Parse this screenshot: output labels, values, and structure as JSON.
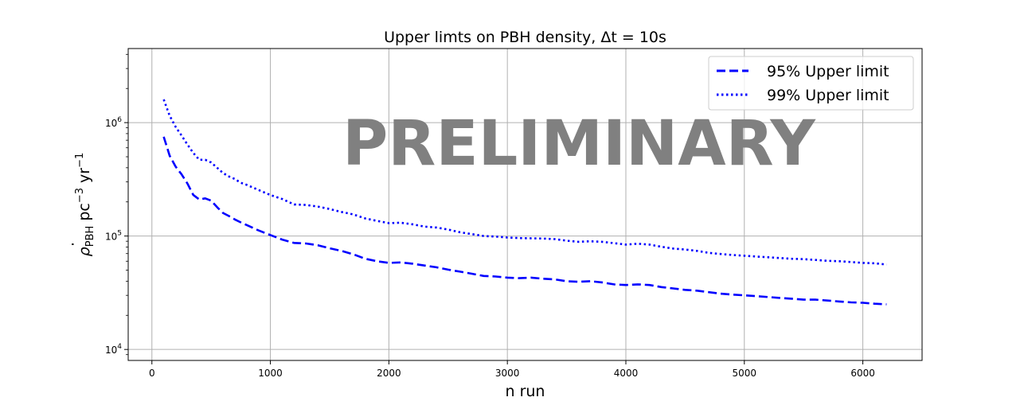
{
  "chart_data": {
    "type": "line",
    "title_prefix": "Upper limts on PBH density, ",
    "title_math": "Δt = 10s",
    "xlabel": "n run",
    "ylabel": {
      "base": "ρ",
      "sub": "PBH",
      "unit1": " pc",
      "exp1": "−3",
      "unit2": " yr",
      "exp2": "−1"
    },
    "xlim": [
      -200,
      6500
    ],
    "ylim": [
      8000,
      4500000
    ],
    "yscale": "log",
    "grid": true,
    "legend_position": "top-right",
    "watermark": "PRELIMINARY",
    "x_ticks": [
      0,
      1000,
      2000,
      3000,
      4000,
      5000,
      6000
    ],
    "x_tick_labels": [
      "0",
      "1000",
      "2000",
      "3000",
      "4000",
      "5000",
      "6000"
    ],
    "y_ticks": [
      10000,
      100000,
      1000000
    ],
    "y_tick_labels": [
      {
        "base": "10",
        "exp": "4"
      },
      {
        "base": "10",
        "exp": "5"
      },
      {
        "base": "10",
        "exp": "6"
      }
    ],
    "x": [
      100,
      150,
      200,
      250,
      300,
      350,
      400,
      450,
      500,
      550,
      600,
      650,
      700,
      750,
      800,
      900,
      1000,
      1100,
      1200,
      1300,
      1400,
      1500,
      1600,
      1700,
      1800,
      1900,
      2000,
      2100,
      2200,
      2300,
      2400,
      2500,
      2600,
      2700,
      2800,
      2900,
      3000,
      3100,
      3200,
      3300,
      3400,
      3500,
      3600,
      3700,
      3800,
      3900,
      4000,
      4100,
      4200,
      4300,
      4400,
      4500,
      4600,
      4700,
      4800,
      4900,
      5000,
      5100,
      5200,
      5300,
      5400,
      5500,
      5600,
      5700,
      5800,
      5900,
      6000,
      6100,
      6200
    ],
    "series": [
      {
        "name": "95% Upper limit",
        "color": "#0000ff",
        "linestyle": "dashed",
        "values": [
          750000,
          510000,
          410000,
          350000,
          290000,
          230000,
          210000,
          215000,
          205000,
          180000,
          160000,
          150000,
          140000,
          132000,
          125000,
          112000,
          102000,
          93000,
          87000,
          86000,
          83000,
          78000,
          74000,
          69000,
          63000,
          60000,
          58000,
          58500,
          57000,
          55000,
          53000,
          50500,
          48500,
          46500,
          44500,
          44000,
          43000,
          42500,
          43000,
          42000,
          41500,
          40000,
          39500,
          40000,
          39000,
          37500,
          37000,
          37500,
          37000,
          35500,
          34500,
          33500,
          33000,
          32000,
          31000,
          30500,
          30000,
          29500,
          29000,
          28500,
          28000,
          27500,
          27500,
          27000,
          26500,
          26000,
          25800,
          25300,
          25000
        ]
      },
      {
        "name": "99% Upper limit",
        "color": "#0000ff",
        "linestyle": "dotted",
        "values": [
          1600000,
          1150000,
          920000,
          770000,
          640000,
          540000,
          470000,
          470000,
          445000,
          400000,
          360000,
          335000,
          318000,
          295000,
          283000,
          255000,
          230000,
          212000,
          190000,
          188000,
          182000,
          173000,
          163000,
          155000,
          143000,
          136000,
          130000,
          131000,
          127000,
          121000,
          119000,
          114000,
          108000,
          104000,
          100000,
          99000,
          97000,
          96000,
          95500,
          95000,
          94000,
          91000,
          89000,
          90000,
          89000,
          86500,
          84000,
          85500,
          84000,
          80500,
          77500,
          76000,
          74000,
          71000,
          69500,
          68000,
          67000,
          66000,
          65000,
          64000,
          63000,
          62500,
          61500,
          60500,
          60000,
          59000,
          58000,
          57500,
          56000
        ]
      }
    ]
  }
}
